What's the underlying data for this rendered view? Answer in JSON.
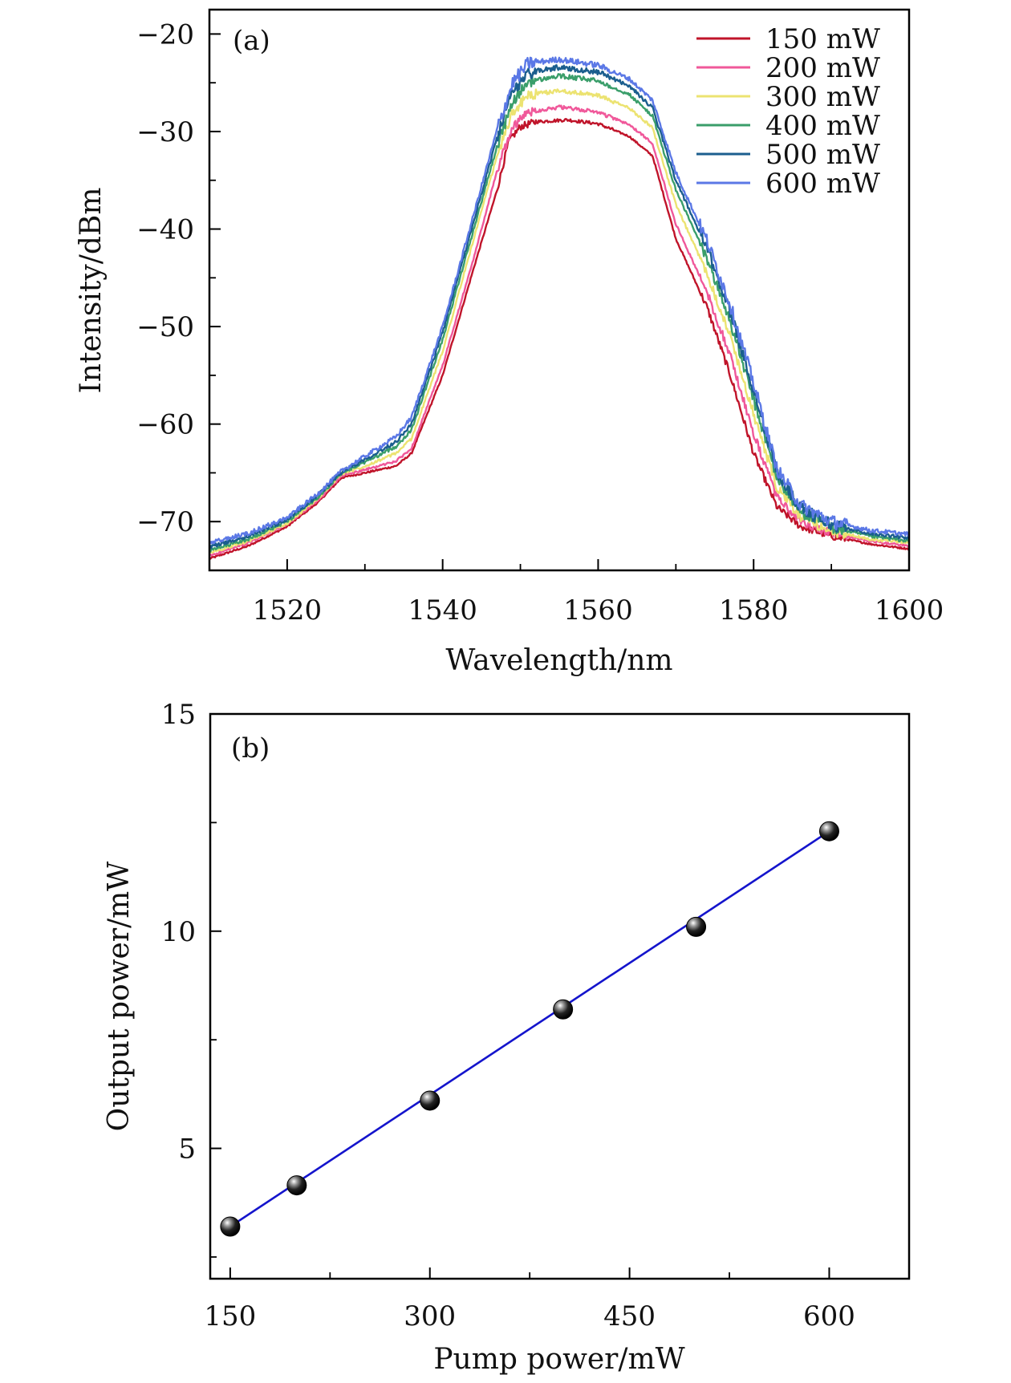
{
  "chart_data": [
    {
      "type": "line",
      "panel_label": "(a)",
      "xlabel": "Wavelength/nm",
      "ylabel": "Intensity/dBm",
      "xlim": [
        1510,
        1600
      ],
      "ylim": [
        -75,
        -17.5
      ],
      "xticks": [
        1520,
        1540,
        1560,
        1580,
        1600
      ],
      "xtick_labels": [
        "1520",
        "1540",
        "1560",
        "1580",
        "1600"
      ],
      "yticks": [
        -20,
        -30,
        -40,
        -50,
        -60,
        -70
      ],
      "ytick_labels": [
        "−20",
        "−30",
        "−40",
        "−50",
        "−60",
        "−70"
      ],
      "grid": false,
      "legend_position": "top-right",
      "series": [
        {
          "name": "150 mW",
          "color": "#c0142a",
          "x": [
            1510,
            1515,
            1520,
            1524,
            1527,
            1530,
            1534,
            1536,
            1540,
            1544,
            1547,
            1548.5,
            1550,
            1552,
            1556,
            1560,
            1564,
            1567,
            1570,
            1574,
            1577,
            1580,
            1583,
            1586,
            1590,
            1595,
            1600
          ],
          "y": [
            -73.8,
            -72.5,
            -70.5,
            -68,
            -65.5,
            -65,
            -64.3,
            -63,
            -55,
            -44,
            -36,
            -31,
            -29.5,
            -29,
            -28.8,
            -29.2,
            -30.5,
            -32.5,
            -41,
            -48,
            -55,
            -63,
            -68.5,
            -70.5,
            -71.5,
            -72.3,
            -72.8
          ]
        },
        {
          "name": "200 mW",
          "color": "#f0589a",
          "x": [
            1510,
            1515,
            1520,
            1524,
            1527,
            1530,
            1534,
            1536,
            1540,
            1544,
            1547,
            1549,
            1551,
            1555,
            1560,
            1564,
            1567,
            1570,
            1574,
            1577,
            1580,
            1583,
            1586,
            1590,
            1595,
            1600
          ],
          "y": [
            -73.5,
            -72.2,
            -70.3,
            -67.8,
            -65.3,
            -64.7,
            -63.8,
            -62.5,
            -54,
            -43,
            -34,
            -29.5,
            -28,
            -27.5,
            -28,
            -29.3,
            -31.2,
            -39.5,
            -46.5,
            -53,
            -61,
            -67.5,
            -70,
            -71.2,
            -72,
            -72.5
          ]
        },
        {
          "name": "300 mW",
          "color": "#ece371",
          "x": [
            1510,
            1515,
            1520,
            1524,
            1527,
            1530,
            1534,
            1536,
            1540,
            1544,
            1547,
            1549,
            1551,
            1555,
            1560,
            1564,
            1567,
            1570,
            1574,
            1577,
            1580,
            1583,
            1586,
            1590,
            1595,
            1600
          ],
          "y": [
            -73.2,
            -72,
            -70.2,
            -67.6,
            -65.1,
            -64.3,
            -63,
            -61.5,
            -52.5,
            -41,
            -32.5,
            -28,
            -26.3,
            -25.8,
            -26.3,
            -27.6,
            -29.6,
            -37.5,
            -44.5,
            -51,
            -59,
            -66.5,
            -69.5,
            -71,
            -71.8,
            -72.2
          ]
        },
        {
          "name": "400 mW",
          "color": "#3a9e6a",
          "x": [
            1510,
            1515,
            1520,
            1524,
            1527,
            1530,
            1534,
            1536,
            1540,
            1544,
            1547,
            1549,
            1551,
            1555,
            1560,
            1564,
            1567,
            1570,
            1574,
            1577,
            1580,
            1583,
            1586,
            1590,
            1595,
            1600
          ],
          "y": [
            -73,
            -71.8,
            -70,
            -67.5,
            -65,
            -63.9,
            -62.3,
            -60.6,
            -51.3,
            -40,
            -31.5,
            -27,
            -24.9,
            -24.3,
            -24.8,
            -26.2,
            -28.4,
            -36,
            -43,
            -49.5,
            -57.5,
            -65.5,
            -69,
            -70.6,
            -71.5,
            -72
          ]
        },
        {
          "name": "500 mW",
          "color": "#1b5e8e",
          "x": [
            1510,
            1515,
            1520,
            1524,
            1527,
            1530,
            1534,
            1536,
            1540,
            1544,
            1547,
            1549,
            1551,
            1555,
            1560,
            1564,
            1567,
            1570,
            1574,
            1577,
            1580,
            1583,
            1586,
            1590,
            1595,
            1600
          ],
          "y": [
            -72.6,
            -71.5,
            -69.8,
            -67.3,
            -64.9,
            -63.6,
            -61.8,
            -60,
            -50.6,
            -39.2,
            -30.6,
            -25.9,
            -24,
            -23.4,
            -23.9,
            -25.3,
            -27.6,
            -35,
            -42,
            -48.5,
            -56.5,
            -65,
            -68.6,
            -70.3,
            -71.2,
            -71.7
          ]
        },
        {
          "name": "600 mW",
          "color": "#5b78e6",
          "x": [
            1510,
            1515,
            1520,
            1524,
            1527,
            1530,
            1534,
            1536,
            1540,
            1544,
            1547,
            1549,
            1551,
            1555,
            1560,
            1564,
            1567,
            1570,
            1574,
            1577,
            1580,
            1583,
            1586,
            1590,
            1595,
            1600
          ],
          "y": [
            -72.2,
            -71.2,
            -69.6,
            -67.1,
            -64.8,
            -63.3,
            -61.3,
            -59.3,
            -50,
            -38.5,
            -29.8,
            -25,
            -23,
            -22.6,
            -23.2,
            -24.6,
            -26.8,
            -34.2,
            -41.2,
            -47.8,
            -55.8,
            -64.6,
            -68.3,
            -70,
            -70.9,
            -71.3
          ]
        }
      ]
    },
    {
      "type": "scatter",
      "panel_label": "(b)",
      "xlabel": "Pump power/mW",
      "ylabel": "Output power/mW",
      "xlim": [
        135,
        660
      ],
      "ylim": [
        2,
        15
      ],
      "xticks": [
        150,
        300,
        450,
        600
      ],
      "xtick_labels": [
        "150",
        "300",
        "450",
        "600"
      ],
      "yticks": [
        5,
        10,
        15
      ],
      "ytick_labels": [
        "5",
        "10",
        "15"
      ],
      "grid": false,
      "series": [
        {
          "name": "Output power",
          "marker_color": "#111111",
          "line_color": "#1414cc",
          "x": [
            150,
            200,
            300,
            400,
            500,
            600
          ],
          "y": [
            3.2,
            4.15,
            6.1,
            8.2,
            10.1,
            12.3
          ],
          "fit_line": {
            "x": [
              150,
              600
            ],
            "y": [
              3.2,
              12.3
            ]
          }
        }
      ]
    }
  ]
}
